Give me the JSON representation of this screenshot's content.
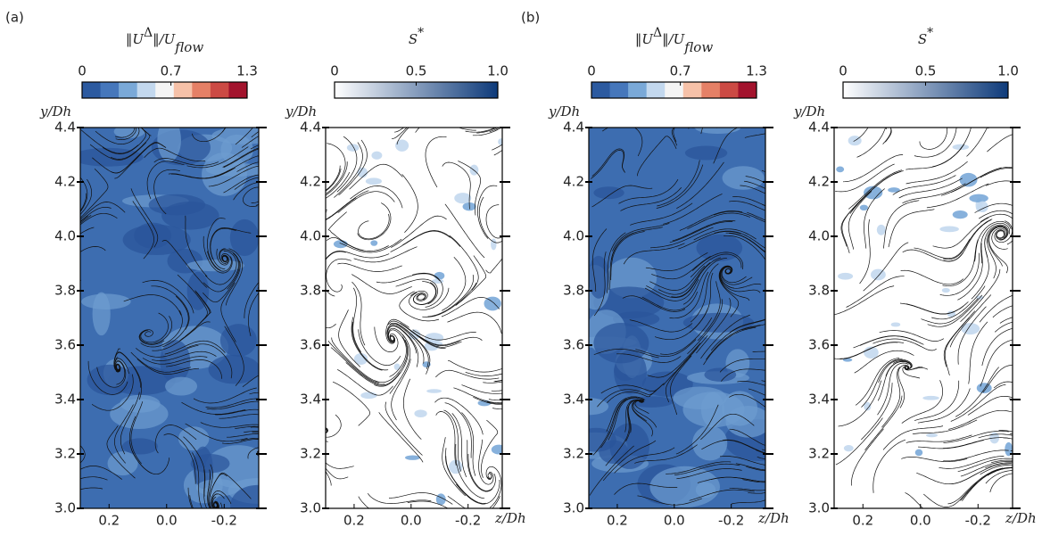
{
  "panel_labels": [
    "(a)",
    "(b)"
  ],
  "chart_data": [
    {
      "type": "contour",
      "title": [
        "‖U",
        "Δ",
        "‖/U",
        "flow"
      ],
      "colorbar": {
        "lim": [
          0,
          1.3
        ],
        "ticks": [
          0,
          0.7,
          1.3
        ],
        "colors": [
          "#2c5aa0",
          "#4677bb",
          "#7aa9d8",
          "#c3d8ee",
          "#f4f4f4",
          "#f6c1a8",
          "#e58066",
          "#cc4a44",
          "#a3132d"
        ]
      },
      "field_color": "#3d6db0",
      "ylabel": "y/Dh",
      "xlabel": null,
      "xlim": [
        0.3,
        -0.32
      ],
      "xticks": [
        0.2,
        {
          "value": 0,
          "label": "0.0"
        },
        -0.2
      ],
      "ylim": [
        3,
        4.4
      ],
      "yticks": [
        {
          "value": 3,
          "label": "3.0"
        },
        3.2,
        3.4,
        3.6,
        3.8,
        {
          "value": 4,
          "label": "4.0"
        },
        4.2,
        4.4
      ]
    },
    {
      "type": "contour",
      "title": [
        "S",
        "*"
      ],
      "colorbar": {
        "lim": [
          0,
          1
        ],
        "ticks": [
          0,
          0.5,
          {
            "value": 1,
            "label": "1.0"
          }
        ],
        "colors": [
          "#ffffff",
          "#0d3a7a"
        ]
      },
      "field_color": "#ffffff",
      "ylabel": "y/Dh",
      "xlabel": "z/Dh",
      "xlim": [
        0.3,
        -0.32
      ],
      "xticks": [
        0.2,
        {
          "value": 0,
          "label": "0.0"
        },
        -0.2
      ],
      "ylim": [
        3,
        4.4
      ],
      "yticks": [
        {
          "value": 3,
          "label": "3.0"
        },
        3.2,
        3.4,
        3.6,
        3.8,
        {
          "value": 4,
          "label": "4.0"
        },
        4.2,
        4.4
      ]
    },
    {
      "type": "contour",
      "title": [
        "‖U",
        "Δ",
        "‖/U",
        "flow"
      ],
      "colorbar": {
        "lim": [
          0,
          1.3
        ],
        "ticks": [
          0,
          0.7,
          1.3
        ],
        "colors": [
          "#2c5aa0",
          "#4677bb",
          "#7aa9d8",
          "#c3d8ee",
          "#f4f4f4",
          "#f6c1a8",
          "#e58066",
          "#cc4a44",
          "#a3132d"
        ]
      },
      "field_color": "#3d6db0",
      "ylabel": "y/Dh",
      "xlabel": "z/Dh",
      "xlim": [
        0.3,
        -0.32
      ],
      "xticks": [
        0.2,
        {
          "value": 0,
          "label": "0.0"
        },
        -0.2
      ],
      "ylim": [
        3,
        4.4
      ],
      "yticks": [
        {
          "value": 3,
          "label": "3.0"
        },
        3.2,
        3.4,
        3.6,
        3.8,
        {
          "value": 4,
          "label": "4.0"
        },
        4.2,
        4.4
      ]
    },
    {
      "type": "contour",
      "title": [
        "S",
        "*"
      ],
      "colorbar": {
        "lim": [
          0,
          1
        ],
        "ticks": [
          0,
          0.5,
          {
            "value": 1,
            "label": "1.0"
          }
        ],
        "colors": [
          "#ffffff",
          "#0d3a7a"
        ]
      },
      "field_color": "#ffffff",
      "ylabel": "y/Dh",
      "xlabel": "z/Dh",
      "xlim": [
        0.3,
        -0.32
      ],
      "xticks": [
        0.2,
        {
          "value": 0,
          "label": "0.0"
        },
        -0.2
      ],
      "ylim": [
        3,
        4.4
      ],
      "yticks": [
        {
          "value": 3,
          "label": "3.0"
        },
        3.2,
        3.4,
        3.6,
        3.8,
        {
          "value": 4,
          "label": "4.0"
        },
        4.2,
        4.4
      ]
    }
  ]
}
